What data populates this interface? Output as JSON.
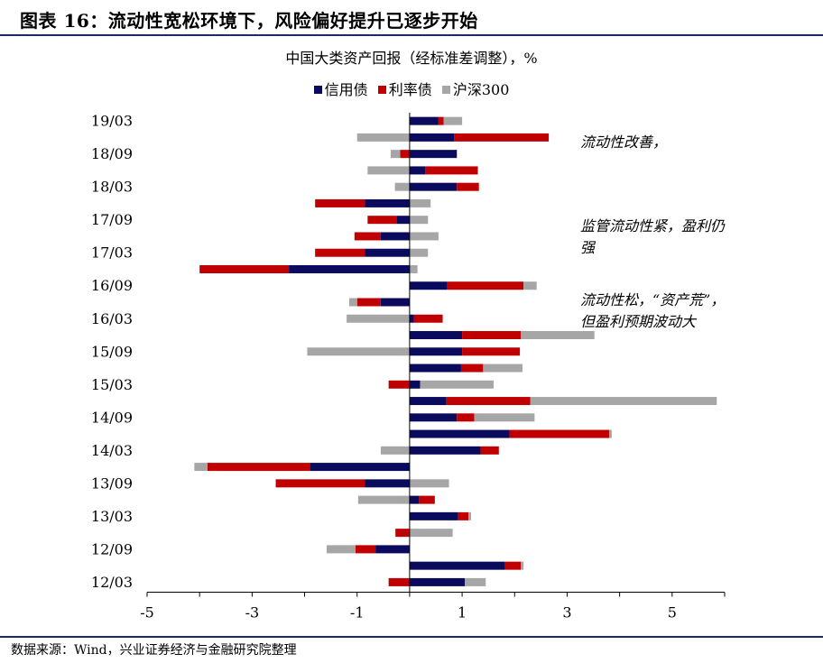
{
  "figure_title": "图表 16：流动性宽松环境下，风险偏好提升已逐步开始",
  "source_note": "数据来源：Wind，兴业证券经济与金融研究院整理",
  "annotations": [
    {
      "text": "流动性改善，"
    },
    {
      "text": "监管流动性紧，盈利仍强"
    },
    {
      "text": "流动性松，“资产荒”，但盈利预期波动大"
    }
  ],
  "colors": {
    "信用债": "#0b0b5e",
    "利率债": "#c00000",
    "沪深300": "#a6a6a6",
    "rule": "#1b2a6b"
  },
  "chart_data": {
    "type": "bar",
    "orientation": "horizontal",
    "stacked": true,
    "title": "中国大类资产回报（经标准差调整），%",
    "xlim": [
      -5,
      6
    ],
    "xticks": [
      -5,
      -3,
      -1,
      1,
      3,
      5
    ],
    "legend": "top-center",
    "categories": [
      "19/03",
      "18/12",
      "18/09",
      "18/06",
      "18/03",
      "17/12",
      "17/09",
      "17/06",
      "17/03",
      "16/12",
      "16/09",
      "16/06",
      "16/03",
      "15/12",
      "15/09",
      "15/06",
      "15/03",
      "14/12",
      "14/09",
      "14/06",
      "14/03",
      "13/12",
      "13/09",
      "13/06",
      "13/03",
      "12/12",
      "12/09",
      "12/06",
      "12/03"
    ],
    "category_labels": [
      "19/03",
      "",
      "18/09",
      "",
      "18/03",
      "",
      "17/09",
      "",
      "17/03",
      "",
      "16/09",
      "",
      "16/03",
      "",
      "15/09",
      "",
      "15/03",
      "",
      "14/09",
      "",
      "14/03",
      "",
      "13/09",
      "",
      "13/03",
      "",
      "12/09",
      "",
      "12/03"
    ],
    "series": [
      {
        "name": "信用债",
        "values": [
          0.55,
          0.85,
          0.9,
          0.3,
          0.9,
          -0.85,
          -0.25,
          -0.55,
          -0.85,
          -2.3,
          0.72,
          -0.55,
          0.08,
          1.0,
          1.0,
          0.98,
          0.2,
          0.7,
          0.9,
          1.9,
          1.35,
          -1.9,
          -0.85,
          0.18,
          0.92,
          0,
          -0.65,
          1.82,
          1.05
        ]
      },
      {
        "name": "利率债",
        "values": [
          0.1,
          1.8,
          -0.18,
          1.0,
          0.42,
          -0.95,
          -0.55,
          -0.5,
          -0.95,
          -1.7,
          1.45,
          -0.45,
          0.55,
          1.12,
          1.1,
          0.42,
          -0.4,
          1.6,
          0.33,
          1.9,
          0.35,
          -1.95,
          -1.7,
          0.3,
          0.2,
          -0.27,
          -0.38,
          0.3,
          -0.4
        ]
      },
      {
        "name": "沪深300",
        "values": [
          0.35,
          -1.0,
          -0.18,
          -0.8,
          -0.28,
          0.4,
          0.35,
          0.55,
          0.35,
          0.15,
          0.25,
          -0.15,
          -1.2,
          1.4,
          -1.95,
          0.75,
          1.4,
          3.55,
          1.15,
          0.05,
          -0.55,
          -0.25,
          0.75,
          -0.98,
          0.05,
          0.82,
          -0.55,
          0.05,
          0.4
        ]
      }
    ]
  }
}
